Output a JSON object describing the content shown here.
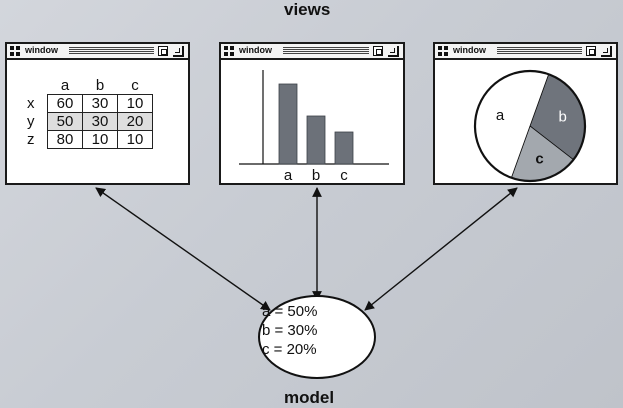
{
  "title_top": "views",
  "title_bottom": "model",
  "windows": [
    {
      "title": "window"
    },
    {
      "title": "window"
    },
    {
      "title": "window"
    }
  ],
  "table": {
    "columns": [
      "a",
      "b",
      "c"
    ],
    "rows": [
      {
        "label": "x",
        "values": [
          "60",
          "30",
          "10"
        ]
      },
      {
        "label": "y",
        "values": [
          "50",
          "30",
          "20"
        ]
      },
      {
        "label": "z",
        "values": [
          "80",
          "10",
          "10"
        ]
      }
    ]
  },
  "chart_data": [
    {
      "type": "bar",
      "categories": [
        "a",
        "b",
        "c"
      ],
      "values": [
        50,
        30,
        20
      ],
      "title": "",
      "xlabel": "",
      "ylabel": ""
    },
    {
      "type": "pie",
      "categories": [
        "a",
        "b",
        "c"
      ],
      "values": [
        50,
        30,
        20
      ],
      "colors": [
        "#ffffff",
        "#6f747c",
        "#a3a8ae"
      ]
    }
  ],
  "model": {
    "lines": [
      "a = 50%",
      "b = 30%",
      "c = 20%"
    ]
  }
}
